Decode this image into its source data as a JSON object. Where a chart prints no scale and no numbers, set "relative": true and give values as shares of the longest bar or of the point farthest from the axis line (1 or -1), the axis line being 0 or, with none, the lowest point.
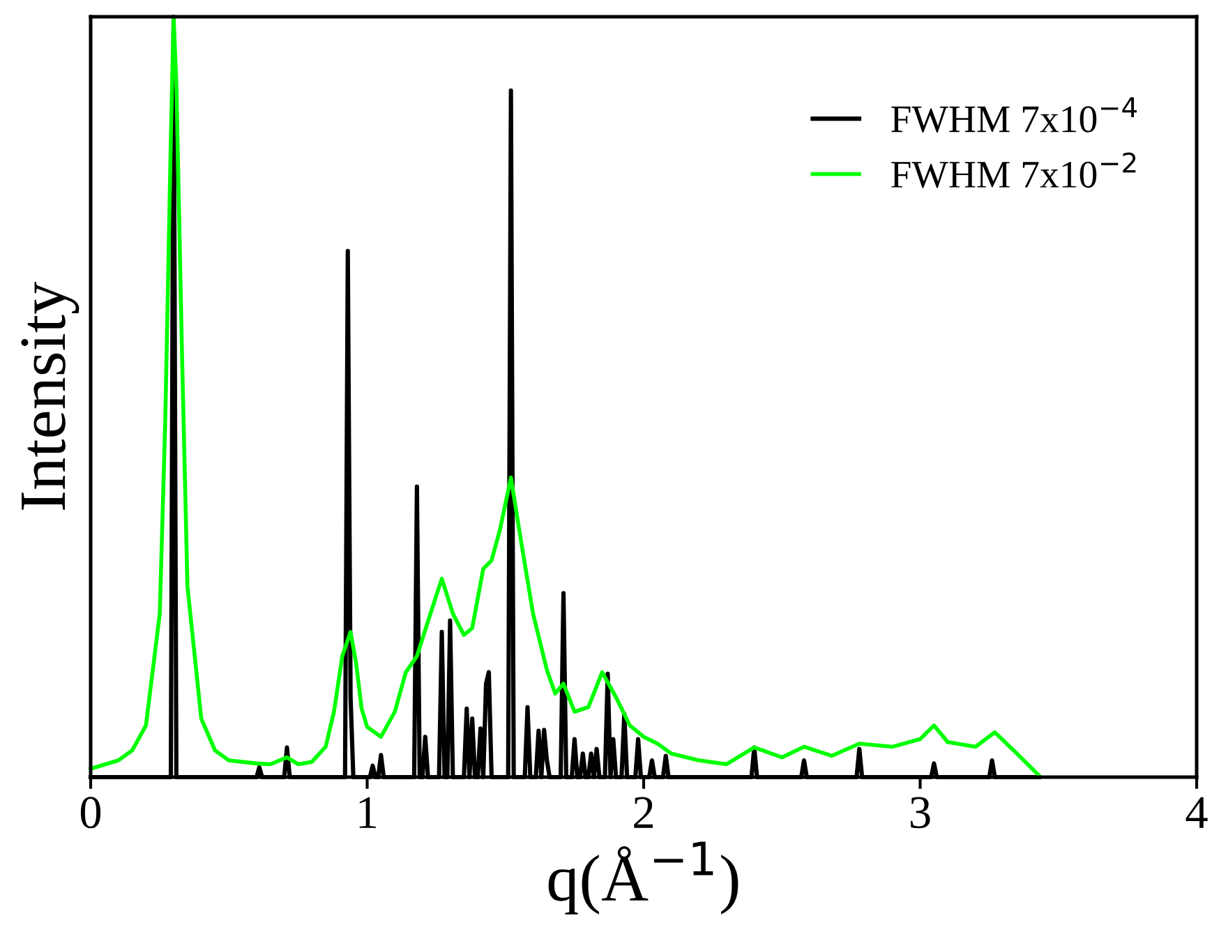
{
  "chart_data": {
    "type": "line",
    "relative": true,
    "xlabel": "q(Å$^{−1}$)",
    "ylabel": "Intensity",
    "xlim": [
      0,
      4
    ],
    "xticks": [
      0,
      1,
      2,
      3,
      4
    ],
    "grid": false,
    "legend": "top right",
    "marker": "none",
    "line_style": "solid",
    "tick_labels": "x",
    "series": [
      {
        "name": "FWHM 7x10$^{−4}$",
        "color": "#000000",
        "x": [
          0,
          0.29,
          0.3,
          0.31,
          0.6,
          0.61,
          0.62,
          0.7,
          0.71,
          0.72,
          0.92,
          0.93,
          0.94,
          0.95,
          0.96,
          1.01,
          1.02,
          1.03,
          1.04,
          1.05,
          1.06,
          1.17,
          1.18,
          1.19,
          1.2,
          1.21,
          1.22,
          1.26,
          1.27,
          1.28,
          1.29,
          1.3,
          1.31,
          1.35,
          1.36,
          1.37,
          1.38,
          1.39,
          1.4,
          1.41,
          1.42,
          1.43,
          1.44,
          1.45,
          1.46,
          1.51,
          1.52,
          1.53,
          1.57,
          1.58,
          1.59,
          1.61,
          1.62,
          1.63,
          1.64,
          1.65,
          1.66,
          1.67,
          1.7,
          1.71,
          1.72,
          1.74,
          1.75,
          1.76,
          1.77,
          1.78,
          1.79,
          1.8,
          1.81,
          1.82,
          1.83,
          1.84,
          1.86,
          1.87,
          1.88,
          1.89,
          1.9,
          1.92,
          1.93,
          1.94,
          1.97,
          1.98,
          1.99,
          2.02,
          2.03,
          2.04,
          2.07,
          2.08,
          2.09,
          2.39,
          2.4,
          2.41,
          2.57,
          2.58,
          2.59,
          2.77,
          2.78,
          2.79,
          3.04,
          3.05,
          3.06,
          3.25,
          3.26,
          3.27,
          3.43
        ],
        "values": [
          0,
          0,
          1.0,
          0,
          0,
          0.013,
          0,
          0,
          0.039,
          0,
          0,
          0.692,
          0.105,
          0,
          0,
          0,
          0.015,
          0,
          0,
          0.029,
          0,
          0,
          0.382,
          0,
          0,
          0.053,
          0,
          0,
          0.191,
          0,
          0,
          0.206,
          0,
          0,
          0.09,
          0,
          0.077,
          0,
          0,
          0.064,
          0,
          0.123,
          0.138,
          0,
          0,
          0,
          0.903,
          0,
          0,
          0.092,
          0,
          0,
          0.061,
          0,
          0.062,
          0.022,
          0,
          0,
          0,
          0.242,
          0,
          0,
          0.05,
          0,
          0,
          0.031,
          0,
          0,
          0.031,
          0,
          0.037,
          0,
          0,
          0.136,
          0,
          0.05,
          0,
          0,
          0.083,
          0,
          0,
          0.05,
          0,
          0,
          0.022,
          0,
          0,
          0.028,
          0,
          0,
          0.039,
          0,
          0,
          0.022,
          0,
          0,
          0.037,
          0,
          0,
          0.018,
          0,
          0,
          0.022,
          0,
          0
        ]
      },
      {
        "name": "FWHM 7x10$^{−2}$",
        "color": "#00ff00",
        "x": [
          0,
          0.1,
          0.15,
          0.2,
          0.25,
          0.27,
          0.29,
          0.3,
          0.31,
          0.33,
          0.35,
          0.4,
          0.45,
          0.5,
          0.6,
          0.65,
          0.71,
          0.75,
          0.8,
          0.85,
          0.88,
          0.91,
          0.94,
          0.96,
          0.98,
          1.0,
          1.05,
          1.1,
          1.14,
          1.18,
          1.22,
          1.27,
          1.31,
          1.35,
          1.38,
          1.42,
          1.45,
          1.48,
          1.52,
          1.55,
          1.6,
          1.65,
          1.68,
          1.71,
          1.75,
          1.8,
          1.85,
          1.9,
          1.95,
          2.0,
          2.05,
          2.1,
          2.2,
          2.3,
          2.4,
          2.5,
          2.58,
          2.68,
          2.78,
          2.9,
          3.0,
          3.05,
          3.1,
          3.2,
          3.27,
          3.35,
          3.43
        ],
        "values": [
          0.011,
          0.022,
          0.035,
          0.068,
          0.215,
          0.472,
          0.839,
          1.0,
          0.912,
          0.563,
          0.251,
          0.077,
          0.035,
          0.022,
          0.018,
          0.017,
          0.026,
          0.017,
          0.02,
          0.04,
          0.086,
          0.159,
          0.191,
          0.15,
          0.09,
          0.066,
          0.053,
          0.086,
          0.138,
          0.159,
          0.205,
          0.261,
          0.215,
          0.187,
          0.196,
          0.274,
          0.285,
          0.325,
          0.394,
          0.325,
          0.215,
          0.141,
          0.11,
          0.123,
          0.086,
          0.092,
          0.138,
          0.105,
          0.068,
          0.053,
          0.044,
          0.031,
          0.022,
          0.017,
          0.039,
          0.026,
          0.04,
          0.028,
          0.044,
          0.04,
          0.05,
          0.068,
          0.046,
          0.04,
          0.059,
          0.031,
          0.002
        ]
      }
    ]
  }
}
